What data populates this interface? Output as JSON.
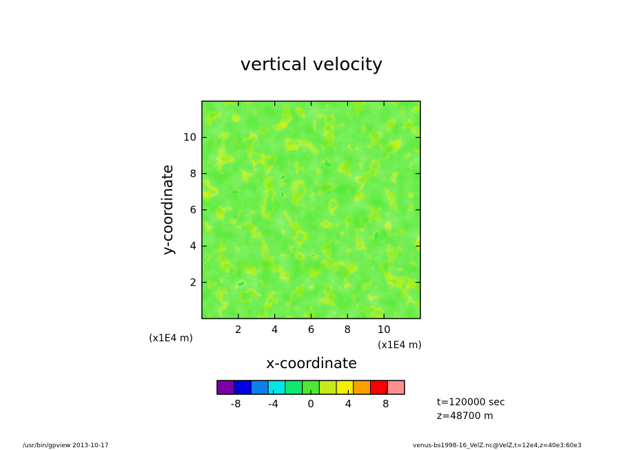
{
  "chart_data": {
    "type": "heatmap",
    "title": "vertical velocity",
    "xlabel": "x-coordinate",
    "ylabel": "y-coordinate",
    "x_unit_label": "(x1E4 m)",
    "y_unit_label": "(x1E4 m)",
    "xlim": [
      0,
      12
    ],
    "ylim": [
      0,
      12
    ],
    "x_ticks": [
      2,
      4,
      6,
      8,
      10
    ],
    "y_ticks": [
      2,
      4,
      6,
      8,
      10
    ],
    "colorbar": {
      "levels": [
        -10,
        -8,
        -6,
        -4,
        -2,
        0,
        2,
        4,
        6,
        8,
        10
      ],
      "colors": [
        "#7b00a8",
        "#0000e6",
        "#0f7fe8",
        "#00e5e5",
        "#10e870",
        "#50e830",
        "#c8e81a",
        "#f0f000",
        "#ffa000",
        "#ff0000",
        "#ff9090"
      ],
      "tick_labels": [
        "-8",
        "-4",
        "0",
        "4",
        "8"
      ],
      "tick_values": [
        -8,
        -4,
        0,
        4,
        8
      ]
    },
    "field_note_colors": {
      "background": "#50e830",
      "dominant_levels": [
        0,
        2,
        -2,
        4,
        -4,
        -8
      ]
    },
    "annotations": {
      "time": "t=120000 sec",
      "height": "z=48700 m"
    }
  },
  "footer": {
    "left": "/usr/bin/gpview  2013-10-17",
    "right": "venus-bs1998-16_VelZ.nc@VelZ,t=12e4,z=40e3:60e3"
  }
}
